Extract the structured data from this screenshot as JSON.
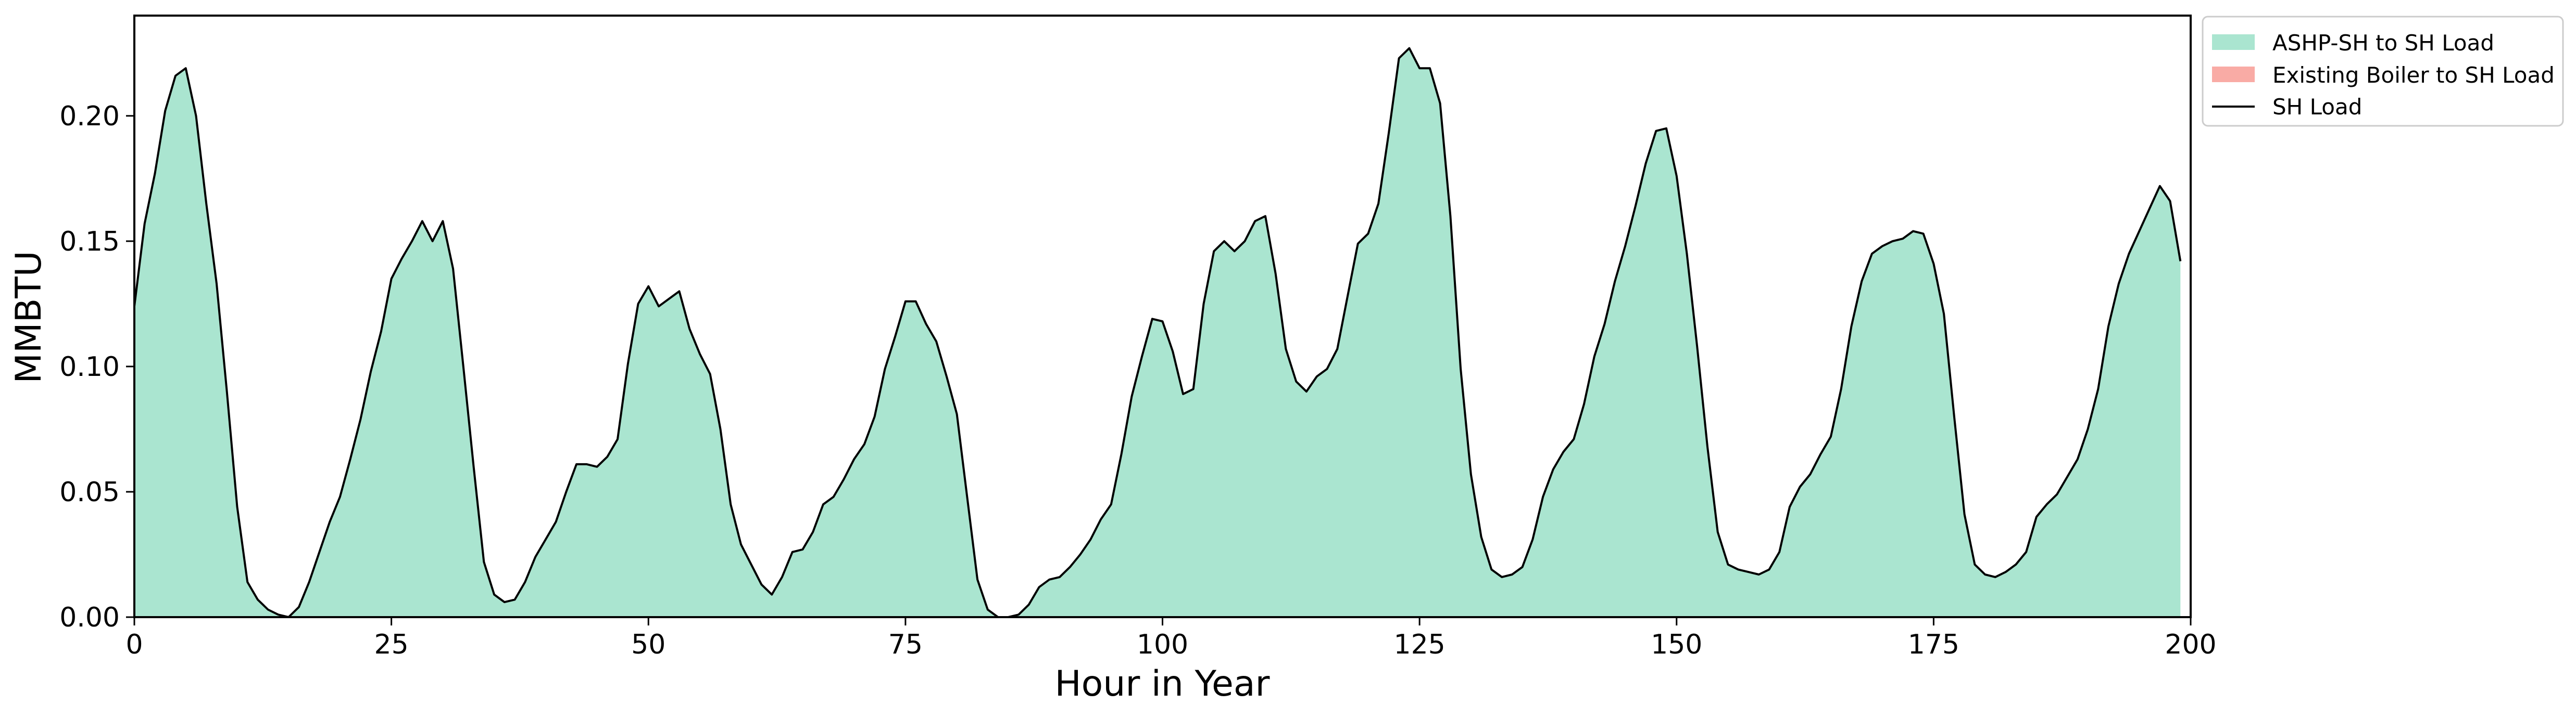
{
  "chart_data": {
    "type": "area",
    "xlabel": "Hour in Year",
    "ylabel": "MMBTU",
    "xlim": [
      0,
      200
    ],
    "ylim": [
      0,
      0.24
    ],
    "xticks": [
      0,
      25,
      50,
      75,
      100,
      125,
      150,
      175,
      200
    ],
    "xtick_labels": [
      "0",
      "25",
      "50",
      "75",
      "100",
      "125",
      "150",
      "175",
      "200"
    ],
    "yticks": [
      0,
      0.05,
      0.1,
      0.15,
      0.2
    ],
    "ytick_labels": [
      "0.00",
      "0.05",
      "0.10",
      "0.15",
      "0.20"
    ],
    "grid": false,
    "legend_position": "outside-top-right",
    "x": [
      0,
      1,
      2,
      3,
      4,
      5,
      6,
      7,
      8,
      9,
      10,
      11,
      12,
      13,
      14,
      15,
      16,
      17,
      18,
      19,
      20,
      21,
      22,
      23,
      24,
      25,
      26,
      27,
      28,
      29,
      30,
      31,
      32,
      33,
      34,
      35,
      36,
      37,
      38,
      39,
      40,
      41,
      42,
      43,
      44,
      45,
      46,
      47,
      48,
      49,
      50,
      51,
      52,
      53,
      54,
      55,
      56,
      57,
      58,
      59,
      60,
      61,
      62,
      63,
      64,
      65,
      66,
      67,
      68,
      69,
      70,
      71,
      72,
      73,
      74,
      75,
      76,
      77,
      78,
      79,
      80,
      81,
      82,
      83,
      84,
      85,
      86,
      87,
      88,
      89,
      90,
      91,
      92,
      93,
      94,
      95,
      96,
      97,
      98,
      99,
      100,
      101,
      102,
      103,
      104,
      105,
      106,
      107,
      108,
      109,
      110,
      111,
      112,
      113,
      114,
      115,
      116,
      117,
      118,
      119,
      120,
      121,
      122,
      123,
      124,
      125,
      126,
      127,
      128,
      129,
      130,
      131,
      132,
      133,
      134,
      135,
      136,
      137,
      138,
      139,
      140,
      141,
      142,
      143,
      144,
      145,
      146,
      147,
      148,
      149,
      150,
      151,
      152,
      153,
      154,
      155,
      156,
      157,
      158,
      159,
      160,
      161,
      162,
      163,
      164,
      165,
      166,
      167,
      168,
      169,
      170,
      171,
      172,
      173,
      174,
      175,
      176,
      177,
      178,
      179,
      180,
      181,
      182,
      183,
      184,
      185,
      186,
      187,
      188,
      189,
      190,
      191,
      192,
      193,
      194,
      195,
      196,
      197,
      198,
      199
    ],
    "series": [
      {
        "name": "ASHP-SH to SH Load",
        "kind": "area",
        "color": "#aae5d0",
        "values": [
          0.124,
          0.157,
          0.177,
          0.202,
          0.216,
          0.219,
          0.2,
          0.165,
          0.133,
          0.09,
          0.044,
          0.014,
          0.007,
          0.003,
          0.001,
          0.0,
          0.004,
          0.014,
          0.026,
          0.038,
          0.048,
          0.063,
          0.079,
          0.098,
          0.114,
          0.135,
          0.143,
          0.15,
          0.158,
          0.15,
          0.158,
          0.139,
          0.1,
          0.06,
          0.022,
          0.009,
          0.006,
          0.007,
          0.014,
          0.024,
          0.031,
          0.038,
          0.05,
          0.061,
          0.061,
          0.06,
          0.064,
          0.071,
          0.101,
          0.125,
          0.132,
          0.124,
          0.127,
          0.13,
          0.115,
          0.105,
          0.097,
          0.075,
          0.045,
          0.029,
          0.021,
          0.013,
          0.009,
          0.016,
          0.026,
          0.027,
          0.034,
          0.045,
          0.048,
          0.055,
          0.063,
          0.069,
          0.08,
          0.099,
          0.112,
          0.126,
          0.126,
          0.117,
          0.11,
          0.096,
          0.081,
          0.048,
          0.015,
          0.003,
          0.0,
          0.0,
          0.001,
          0.005,
          0.012,
          0.015,
          0.016,
          0.02,
          0.025,
          0.031,
          0.039,
          0.045,
          0.065,
          0.088,
          0.104,
          0.119,
          0.118,
          0.106,
          0.089,
          0.091,
          0.125,
          0.146,
          0.15,
          0.146,
          0.15,
          0.158,
          0.16,
          0.137,
          0.107,
          0.094,
          0.09,
          0.096,
          0.099,
          0.107,
          0.128,
          0.149,
          0.153,
          0.165,
          0.193,
          0.223,
          0.227,
          0.219,
          0.219,
          0.205,
          0.16,
          0.099,
          0.057,
          0.032,
          0.019,
          0.016,
          0.017,
          0.02,
          0.031,
          0.048,
          0.059,
          0.066,
          0.071,
          0.085,
          0.104,
          0.117,
          0.134,
          0.148,
          0.164,
          0.181,
          0.194,
          0.195,
          0.176,
          0.145,
          0.108,
          0.068,
          0.034,
          0.021,
          0.019,
          0.018,
          0.017,
          0.019,
          0.026,
          0.044,
          0.052,
          0.057,
          0.065,
          0.072,
          0.091,
          0.116,
          0.134,
          0.145,
          0.148,
          0.15,
          0.151,
          0.154,
          0.153,
          0.141,
          0.121,
          0.08,
          0.041,
          0.021,
          0.017,
          0.016,
          0.018,
          0.021,
          0.026,
          0.04,
          0.045,
          0.049,
          0.056,
          0.063,
          0.075,
          0.091,
          0.116,
          0.133,
          0.145,
          0.154,
          0.163,
          0.172,
          0.166,
          0.142
        ]
      },
      {
        "name": "Existing Boiler to SH Load",
        "kind": "area",
        "color": "#f9aba5",
        "values": [
          0,
          0,
          0,
          0,
          0,
          0,
          0,
          0,
          0,
          0,
          0,
          0,
          0,
          0,
          0,
          0,
          0,
          0,
          0,
          0,
          0,
          0,
          0,
          0,
          0,
          0,
          0,
          0,
          0,
          0,
          0,
          0,
          0,
          0,
          0,
          0,
          0,
          0,
          0,
          0,
          0,
          0,
          0,
          0,
          0,
          0,
          0,
          0,
          0,
          0,
          0,
          0,
          0,
          0,
          0,
          0,
          0,
          0,
          0,
          0,
          0,
          0,
          0,
          0,
          0,
          0,
          0,
          0,
          0,
          0,
          0,
          0,
          0,
          0,
          0,
          0,
          0,
          0,
          0,
          0,
          0,
          0,
          0,
          0,
          0,
          0,
          0,
          0,
          0,
          0,
          0,
          0,
          0,
          0,
          0,
          0,
          0,
          0,
          0,
          0,
          0,
          0,
          0,
          0,
          0,
          0,
          0,
          0,
          0,
          0,
          0,
          0,
          0,
          0,
          0,
          0,
          0,
          0,
          0,
          0,
          0,
          0,
          0,
          0,
          0,
          0,
          0,
          0,
          0,
          0,
          0,
          0,
          0,
          0,
          0,
          0,
          0,
          0,
          0,
          0,
          0,
          0,
          0,
          0,
          0,
          0,
          0,
          0,
          0,
          0,
          0,
          0,
          0,
          0,
          0,
          0,
          0,
          0,
          0,
          0,
          0,
          0,
          0,
          0,
          0,
          0,
          0,
          0,
          0,
          0,
          0,
          0,
          0,
          0,
          0,
          0,
          0,
          0,
          0,
          0,
          0,
          0,
          0,
          0,
          0,
          0,
          0,
          0,
          0,
          0,
          0,
          0,
          0,
          0,
          0,
          0,
          0,
          0,
          0,
          0
        ]
      },
      {
        "name": "SH Load",
        "kind": "line",
        "color": "#000000",
        "values": [
          0.124,
          0.157,
          0.177,
          0.202,
          0.216,
          0.219,
          0.2,
          0.165,
          0.133,
          0.09,
          0.044,
          0.014,
          0.007,
          0.003,
          0.001,
          0.0,
          0.004,
          0.014,
          0.026,
          0.038,
          0.048,
          0.063,
          0.079,
          0.098,
          0.114,
          0.135,
          0.143,
          0.15,
          0.158,
          0.15,
          0.158,
          0.139,
          0.1,
          0.06,
          0.022,
          0.009,
          0.006,
          0.007,
          0.014,
          0.024,
          0.031,
          0.038,
          0.05,
          0.061,
          0.061,
          0.06,
          0.064,
          0.071,
          0.101,
          0.125,
          0.132,
          0.124,
          0.127,
          0.13,
          0.115,
          0.105,
          0.097,
          0.075,
          0.045,
          0.029,
          0.021,
          0.013,
          0.009,
          0.016,
          0.026,
          0.027,
          0.034,
          0.045,
          0.048,
          0.055,
          0.063,
          0.069,
          0.08,
          0.099,
          0.112,
          0.126,
          0.126,
          0.117,
          0.11,
          0.096,
          0.081,
          0.048,
          0.015,
          0.003,
          0.0,
          0.0,
          0.001,
          0.005,
          0.012,
          0.015,
          0.016,
          0.02,
          0.025,
          0.031,
          0.039,
          0.045,
          0.065,
          0.088,
          0.104,
          0.119,
          0.118,
          0.106,
          0.089,
          0.091,
          0.125,
          0.146,
          0.15,
          0.146,
          0.15,
          0.158,
          0.16,
          0.137,
          0.107,
          0.094,
          0.09,
          0.096,
          0.099,
          0.107,
          0.128,
          0.149,
          0.153,
          0.165,
          0.193,
          0.223,
          0.227,
          0.219,
          0.219,
          0.205,
          0.16,
          0.099,
          0.057,
          0.032,
          0.019,
          0.016,
          0.017,
          0.02,
          0.031,
          0.048,
          0.059,
          0.066,
          0.071,
          0.085,
          0.104,
          0.117,
          0.134,
          0.148,
          0.164,
          0.181,
          0.194,
          0.195,
          0.176,
          0.145,
          0.108,
          0.068,
          0.034,
          0.021,
          0.019,
          0.018,
          0.017,
          0.019,
          0.026,
          0.044,
          0.052,
          0.057,
          0.065,
          0.072,
          0.091,
          0.116,
          0.134,
          0.145,
          0.148,
          0.15,
          0.151,
          0.154,
          0.153,
          0.141,
          0.121,
          0.08,
          0.041,
          0.021,
          0.017,
          0.016,
          0.018,
          0.021,
          0.026,
          0.04,
          0.045,
          0.049,
          0.056,
          0.063,
          0.075,
          0.091,
          0.116,
          0.133,
          0.145,
          0.154,
          0.163,
          0.172,
          0.166,
          0.142
        ]
      }
    ],
    "legend": [
      {
        "label": "ASHP-SH to SH Load",
        "marker": "patch",
        "color": "#aae5d0"
      },
      {
        "label": "Existing Boiler to SH Load",
        "marker": "patch",
        "color": "#f9aba5"
      },
      {
        "label": "SH Load",
        "marker": "line",
        "color": "#000000"
      }
    ]
  }
}
